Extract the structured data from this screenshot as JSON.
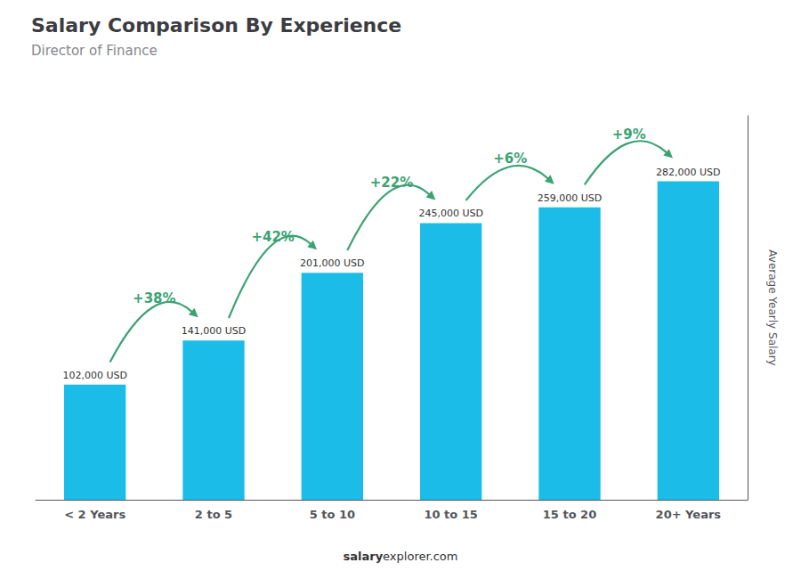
{
  "chart_data": {
    "type": "bar",
    "title": "Salary Comparison By Experience",
    "subtitle": "Director of Finance",
    "categories": [
      "< 2 Years",
      "2 to 5",
      "5 to 10",
      "10 to 15",
      "15 to 20",
      "20+ Years"
    ],
    "values": [
      102000,
      141000,
      201000,
      245000,
      259000,
      282000
    ],
    "value_labels": [
      "102,000 USD",
      "141,000 USD",
      "201,000 USD",
      "245,000 USD",
      "259,000 USD",
      "282,000 USD"
    ],
    "data_labels": true,
    "color": "#1bbde8",
    "ylabel": "Average Yearly Salary",
    "ylim": [
      0,
      340000
    ],
    "grid": false,
    "tick_labels": "x",
    "annotations": [
      {
        "text": "+38%",
        "from": "< 2 Years",
        "to": "2 to 5"
      },
      {
        "text": "+42%",
        "from": "2 to 5",
        "to": "5 to 10"
      },
      {
        "text": "+22%",
        "from": "5 to 10",
        "to": "10 to 15"
      },
      {
        "text": "+6%",
        "from": "10 to 15",
        "to": "15 to 20"
      },
      {
        "text": "+9%",
        "from": "15 to 20",
        "to": "20+ Years"
      }
    ],
    "footer": [
      "salary",
      "explorer.com"
    ]
  }
}
